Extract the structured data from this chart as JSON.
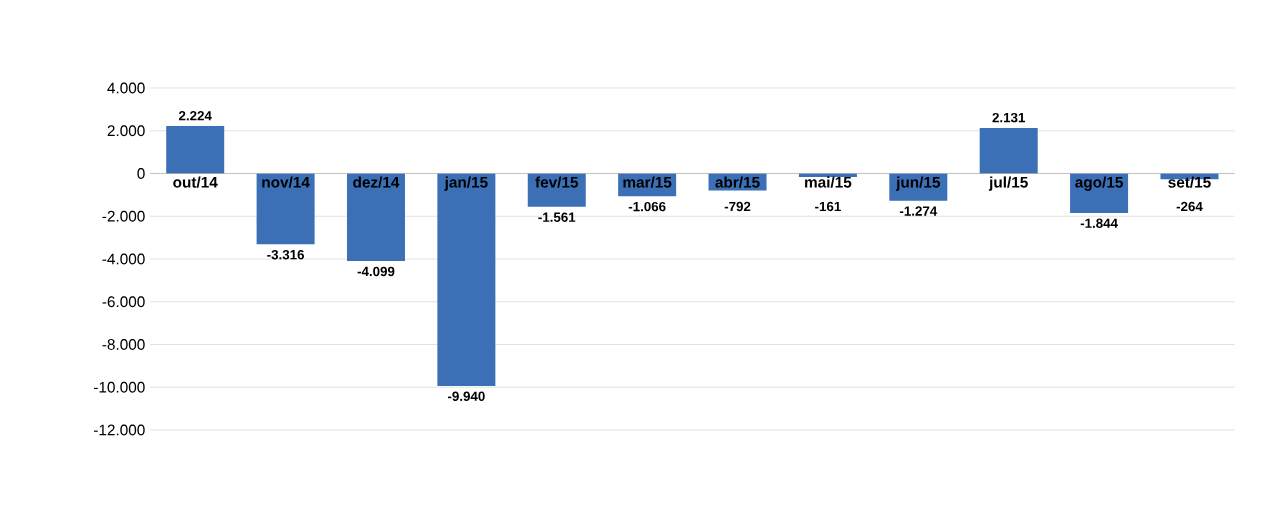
{
  "chart_data": {
    "type": "bar",
    "categories": [
      "out/14",
      "nov/14",
      "dez/14",
      "jan/15",
      "fev/15",
      "mar/15",
      "abr/15",
      "mai/15",
      "jun/15",
      "jul/15",
      "ago/15",
      "set/15"
    ],
    "values": [
      2224,
      -3316,
      -4099,
      -9940,
      -1561,
      -1066,
      -792,
      -161,
      -1274,
      2131,
      -1844,
      -264
    ],
    "value_labels": [
      "2.224",
      "-3.316",
      "-4.099",
      "-9.940",
      "-1.561",
      "-1.066",
      "-792",
      "-161",
      "-1.274",
      "2.131",
      "-1.844",
      "-264"
    ],
    "color": "#3b6fb6",
    "ylim": [
      -12000,
      4000
    ],
    "yticks": [
      {
        "value": 4000,
        "label": "4.000"
      },
      {
        "value": 2000,
        "label": "2.000"
      },
      {
        "value": 0,
        "label": "0"
      },
      {
        "value": -2000,
        "label": "-2.000"
      },
      {
        "value": -4000,
        "label": "-4.000"
      },
      {
        "value": -6000,
        "label": "-6.000"
      },
      {
        "value": -8000,
        "label": "-8.000"
      },
      {
        "value": -10000,
        "label": "-10.000"
      },
      {
        "value": -12000,
        "label": "-12.000"
      }
    ],
    "grid": "y"
  }
}
